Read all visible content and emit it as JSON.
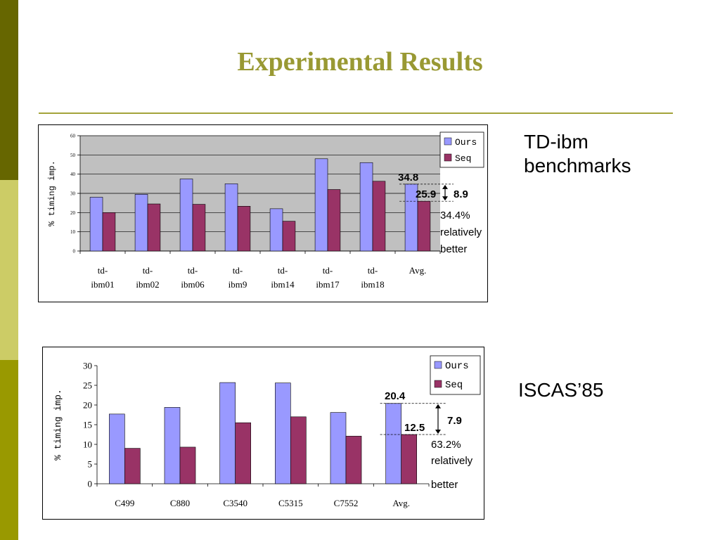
{
  "slide": {
    "title": "Experimental Results",
    "label_top": [
      "TD-ibm",
      "benchmarks"
    ],
    "label_bottom": "ISCAS’85"
  },
  "colors": {
    "ours": "#9999ff",
    "seq": "#993366",
    "plot_bg": "#c0c0c0",
    "title": "#999933"
  },
  "chart_data": [
    {
      "type": "bar",
      "ylabel": "% timing imp.",
      "ylim": [
        0,
        60
      ],
      "yticks": [
        0,
        10,
        20,
        30,
        40,
        50,
        60
      ],
      "categories": [
        "td-\nibm01",
        "td-\nibm02",
        "td-\nibm06",
        "td-\nibm9",
        "td-\nibm14",
        "td-\nibm17",
        "td-\nibm18",
        "Avg."
      ],
      "series": [
        {
          "name": "Ours",
          "values": [
            28,
            29.5,
            37.5,
            35,
            22,
            48,
            46,
            34.8
          ]
        },
        {
          "name": "Seq",
          "values": [
            20,
            24.5,
            24.3,
            23.3,
            15.5,
            32,
            36.3,
            25.9
          ]
        }
      ],
      "grid": true,
      "legend": "top-right",
      "annotations": {
        "ours_avg": "34.8",
        "seq_avg": "25.9",
        "diff": "8.9",
        "note": [
          "34.4%",
          "relatively",
          "better"
        ]
      }
    },
    {
      "type": "bar",
      "ylabel": "% timing imp.",
      "ylim": [
        0,
        30
      ],
      "yticks": [
        0,
        5,
        10,
        15,
        20,
        25,
        30
      ],
      "categories": [
        "C499",
        "C880",
        "C3540",
        "C5315",
        "C7552",
        "Avg."
      ],
      "series": [
        {
          "name": "Ours",
          "values": [
            17.7,
            19.4,
            25.7,
            25.6,
            18.1,
            20.4
          ]
        },
        {
          "name": "Seq",
          "values": [
            9,
            9.3,
            15.5,
            17,
            12.1,
            12.5
          ]
        }
      ],
      "grid": false,
      "legend": "top-right",
      "annotations": {
        "ours_avg": "20.4",
        "seq_avg": "12.5",
        "diff": "7.9",
        "note": [
          "63.2%",
          "relatively",
          "better"
        ]
      }
    }
  ]
}
